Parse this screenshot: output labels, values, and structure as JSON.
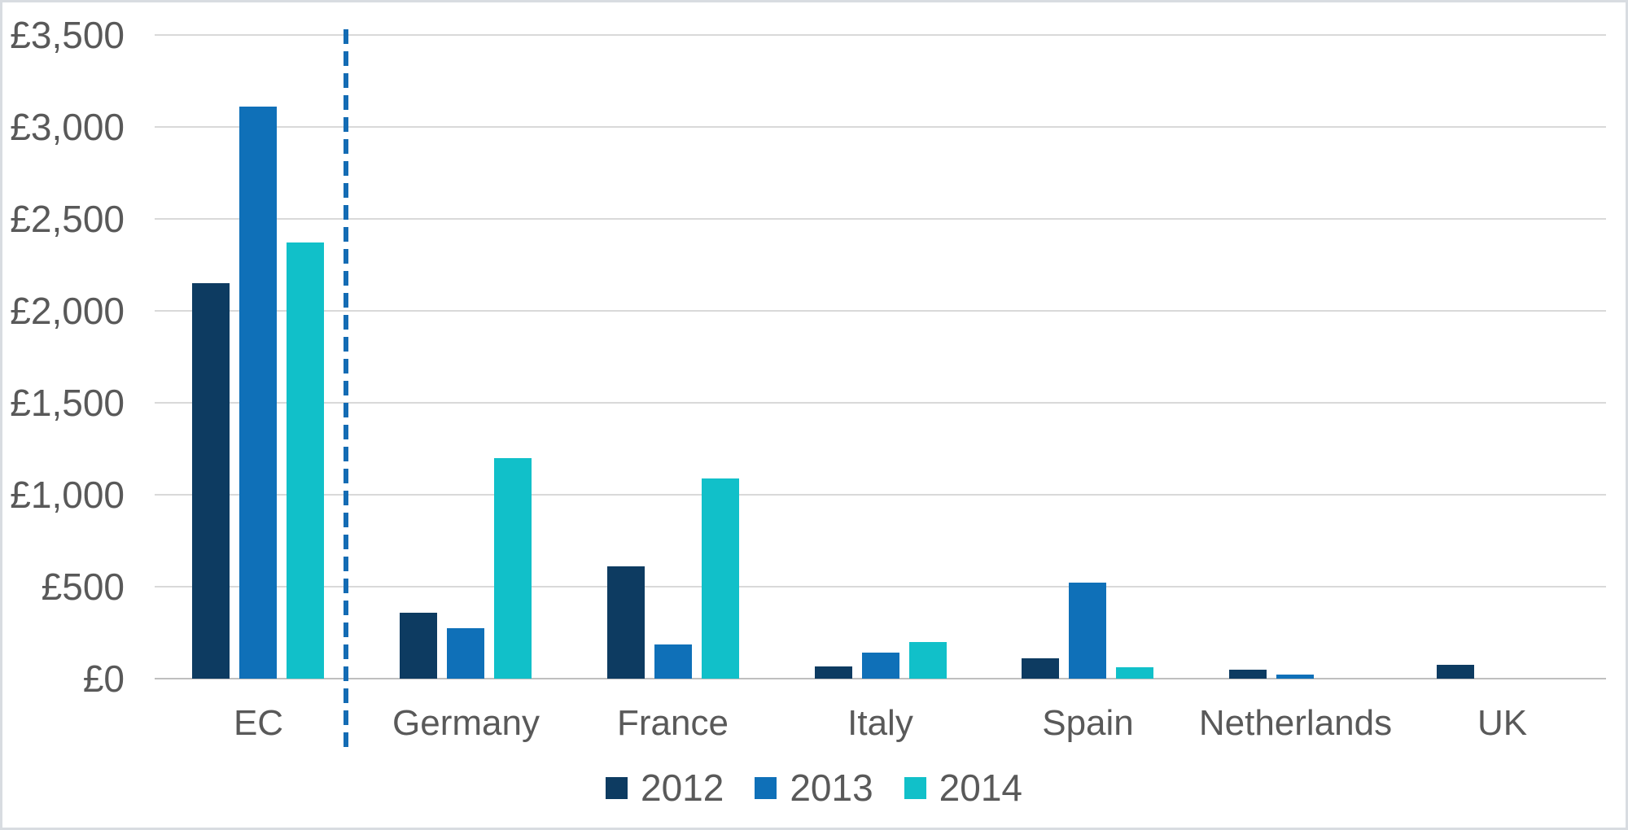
{
  "chart_data": {
    "type": "bar",
    "title": "",
    "xlabel": "",
    "ylabel": "",
    "categories": [
      "EC",
      "Germany",
      "France",
      "Italy",
      "Spain",
      "Netherlands",
      "UK"
    ],
    "series": [
      {
        "name": "2012",
        "color": "#0d3b61",
        "values": [
          2150,
          360,
          610,
          65,
          110,
          50,
          75
        ]
      },
      {
        "name": "2013",
        "color": "#0f70b8",
        "values": [
          3110,
          275,
          185,
          140,
          520,
          20,
          0
        ]
      },
      {
        "name": "2014",
        "color": "#11c0c9",
        "values": [
          2370,
          1200,
          1090,
          200,
          60,
          0,
          0
        ]
      }
    ],
    "ylim": [
      0,
      3500
    ],
    "ytick_step": 500,
    "ytick_labels": [
      "£0",
      "£500",
      "£1,000",
      "£1,500",
      "£2,000",
      "£2,500",
      "£3,000",
      "£3,500"
    ],
    "grid": "horizontal",
    "legend_position": "bottom",
    "legend_labels": [
      "2012",
      "2013",
      "2014"
    ],
    "separator": {
      "after_category": "EC",
      "style": "dashed",
      "color": "#146cb4"
    }
  },
  "colors": {
    "background": "#ffffff",
    "figure_border": "#d8dce1",
    "gridline": "#d9d9d9",
    "baseline": "#bfbfbf",
    "text": "#595959"
  }
}
